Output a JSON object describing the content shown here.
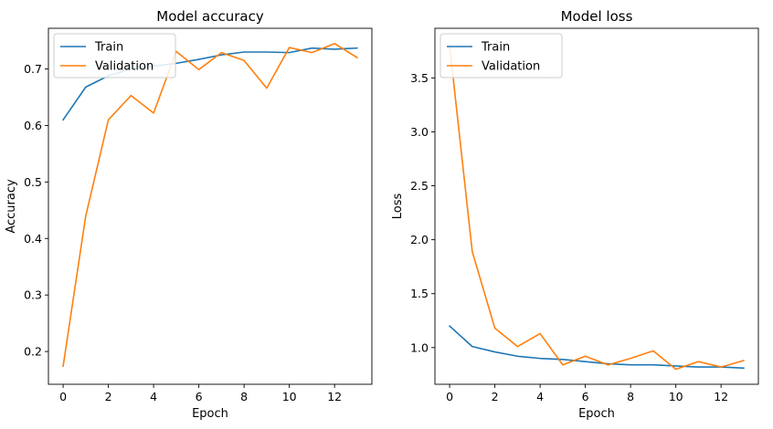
{
  "chart_data": [
    {
      "type": "line",
      "title": "Model accuracy",
      "xlabel": "Epoch",
      "ylabel": "Accuracy",
      "xlim": [
        -0.65,
        13.65
      ],
      "ylim": [
        0.142,
        0.772
      ],
      "xticks": [
        0,
        2,
        4,
        6,
        8,
        10,
        12
      ],
      "yticks": [
        0.2,
        0.3,
        0.4,
        0.5,
        0.6,
        0.7
      ],
      "ytick_labels": [
        "0.2",
        "0.3",
        "0.4",
        "0.5",
        "0.6",
        "0.7"
      ],
      "grid": false,
      "legend": "upper left",
      "x": [
        0,
        1,
        2,
        3,
        4,
        5,
        6,
        7,
        8,
        9,
        10,
        11,
        12,
        13
      ],
      "series": [
        {
          "name": "Train",
          "color": "#1f77b4",
          "values": [
            0.61,
            0.668,
            0.688,
            0.7,
            0.705,
            0.71,
            0.717,
            0.725,
            0.73,
            0.73,
            0.729,
            0.737,
            0.735,
            0.737
          ]
        },
        {
          "name": "Validation",
          "color": "#ff7f0e",
          "values": [
            0.174,
            0.44,
            0.61,
            0.653,
            0.622,
            0.731,
            0.699,
            0.729,
            0.715,
            0.666,
            0.738,
            0.729,
            0.745,
            0.72
          ]
        }
      ]
    },
    {
      "type": "line",
      "title": "Model loss",
      "xlabel": "Epoch",
      "ylabel": "Loss",
      "xlim": [
        -0.65,
        13.65
      ],
      "ylim": [
        0.66,
        3.96
      ],
      "xticks": [
        0,
        2,
        4,
        6,
        8,
        10,
        12
      ],
      "yticks": [
        1.0,
        1.5,
        2.0,
        2.5,
        3.0,
        3.5
      ],
      "ytick_labels": [
        "1.0",
        "1.5",
        "2.0",
        "2.5",
        "3.0",
        "3.5"
      ],
      "grid": false,
      "legend": "upper left",
      "x": [
        0,
        1,
        2,
        3,
        4,
        5,
        6,
        7,
        8,
        9,
        10,
        11,
        12,
        13
      ],
      "series": [
        {
          "name": "Train",
          "color": "#1f77b4",
          "values": [
            1.2,
            1.01,
            0.96,
            0.92,
            0.9,
            0.89,
            0.87,
            0.85,
            0.84,
            0.84,
            0.83,
            0.82,
            0.82,
            0.81
          ]
        },
        {
          "name": "Validation",
          "color": "#ff7f0e",
          "values": [
            3.8,
            1.89,
            1.18,
            1.01,
            1.13,
            0.84,
            0.92,
            0.84,
            0.9,
            0.97,
            0.8,
            0.87,
            0.82,
            0.88
          ]
        }
      ]
    }
  ]
}
